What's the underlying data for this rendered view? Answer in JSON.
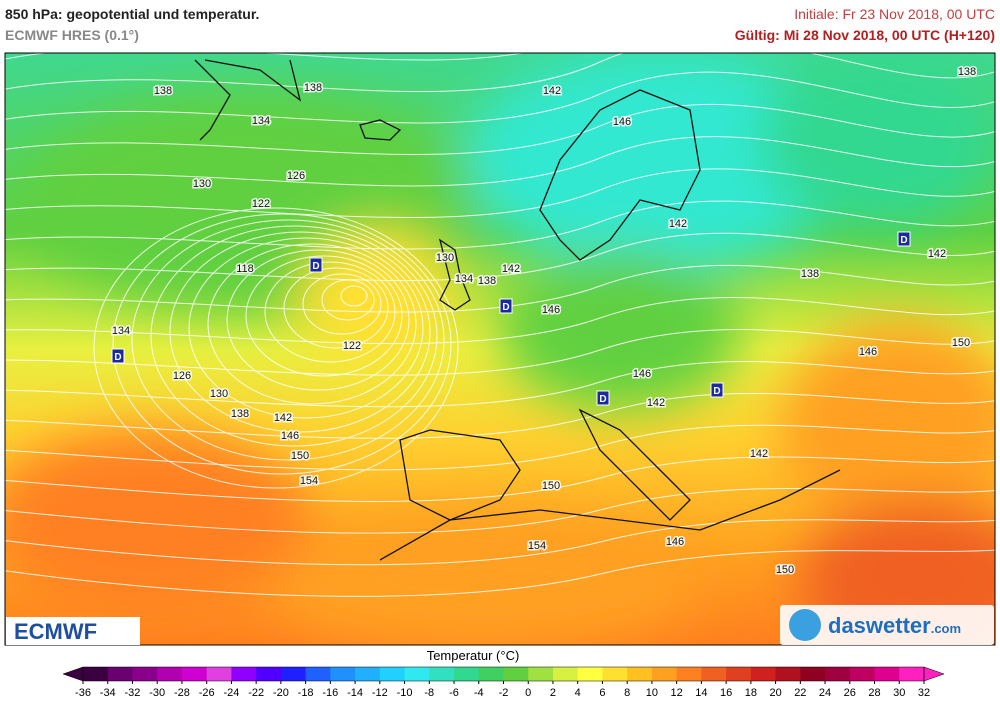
{
  "header": {
    "title": "850 hPa: geopotential und temperatur.",
    "subtitle": "ECMWF HRES (0.1°)",
    "init": "Initiale: Fr 23 Nov 2018, 00 UTC",
    "valid": "Gültig: Mi 28 Nov 2018, 00 UTC (H+120)"
  },
  "contour_labels": [
    "138",
    "138",
    "142",
    "138",
    "134",
    "146",
    "126",
    "130",
    "122",
    "142",
    "142",
    "118",
    "130",
    "142",
    "134",
    "138",
    "138",
    "146",
    "134",
    "122",
    "146",
    "150",
    "126",
    "146",
    "130",
    "142",
    "138",
    "142",
    "146",
    "150",
    "142",
    "154",
    "150",
    "154",
    "146",
    "150"
  ],
  "lows": [
    "D",
    "D",
    "D",
    "D",
    "D",
    "D"
  ],
  "logos": {
    "ecmwf": "ECMWF",
    "daswetter": "daswetter",
    "daswetter_tld": ".com"
  },
  "colorbar": {
    "label": "Temperatur (°C)",
    "ticks": [
      -36,
      -34,
      -32,
      -30,
      -28,
      -26,
      -24,
      -22,
      -20,
      -18,
      -16,
      -14,
      -12,
      -10,
      -8,
      -6,
      -4,
      -2,
      0,
      2,
      4,
      6,
      8,
      10,
      12,
      14,
      16,
      18,
      20,
      22,
      24,
      26,
      28,
      30,
      32
    ],
    "colors": [
      "#3a0040",
      "#6a0070",
      "#8a008a",
      "#b000b0",
      "#d000d0",
      "#e040e0",
      "#9000ff",
      "#5000ff",
      "#2020ff",
      "#2060ff",
      "#2090ff",
      "#20b0ff",
      "#20d0ff",
      "#30e8f0",
      "#30e0c0",
      "#30d890",
      "#40d060",
      "#60d040",
      "#a0e040",
      "#d8f040",
      "#ffff40",
      "#ffe030",
      "#ffc020",
      "#ffa020",
      "#ff8020",
      "#f06020",
      "#e04020",
      "#d02020",
      "#b01020",
      "#900020",
      "#a00040",
      "#c00060",
      "#e00090",
      "#ff20c0"
    ]
  }
}
